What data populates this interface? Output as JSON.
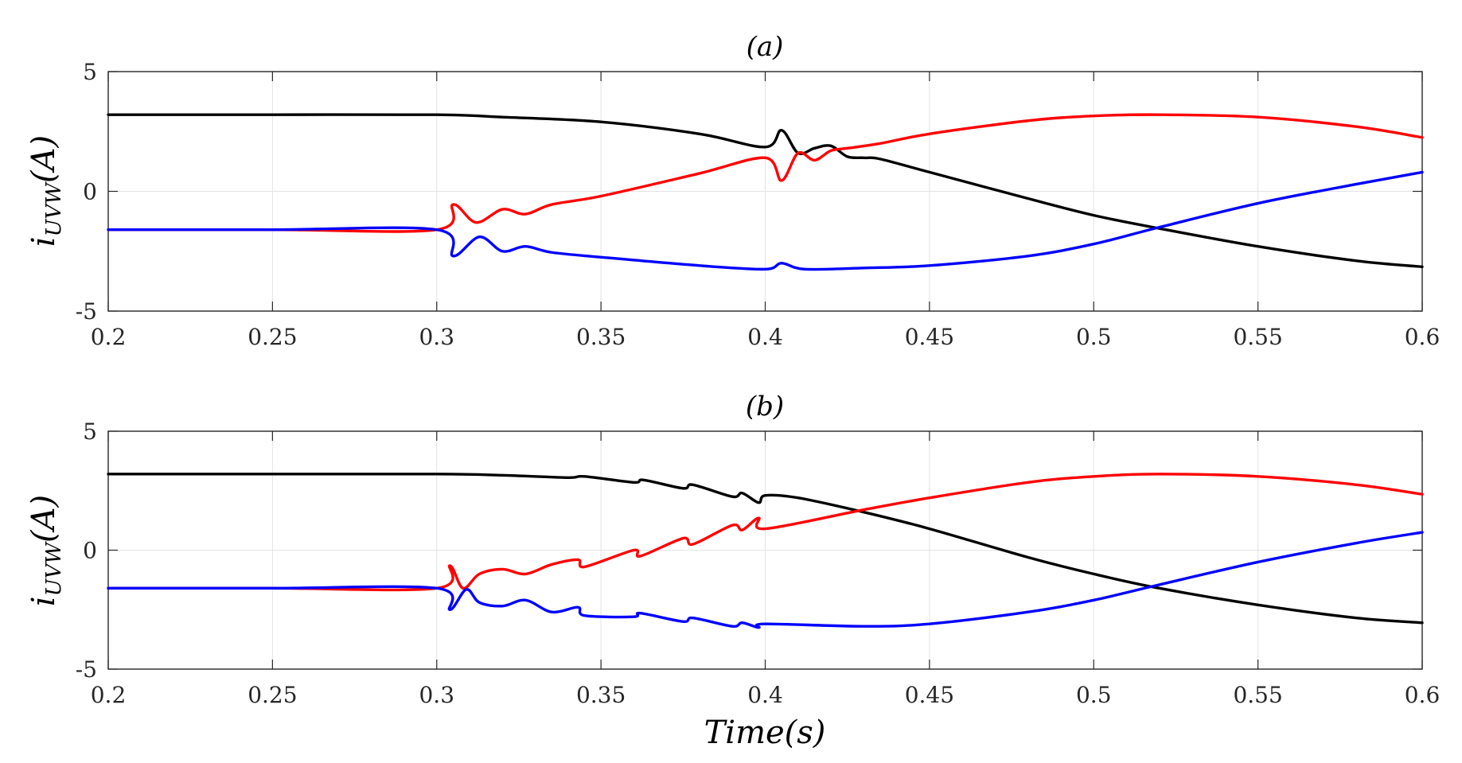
{
  "chart_data": [
    {
      "type": "line",
      "panel": "a",
      "title": "(a)",
      "xlabel": "",
      "ylabel": "i_UVW(A)",
      "xlim": [
        0.2,
        0.6
      ],
      "ylim": [
        -5,
        5
      ],
      "xticks": [
        0.2,
        0.25,
        0.3,
        0.35,
        0.4,
        0.45,
        0.5,
        0.55,
        0.6
      ],
      "xtick_labels": [
        "0.2",
        "0.25",
        "0.3",
        "0.35",
        "0.4",
        "0.45",
        "0.5",
        "0.55",
        "0.6"
      ],
      "yticks": [
        5,
        0,
        -5
      ],
      "ytick_labels": [
        "5",
        "0",
        "-5"
      ],
      "grid": true,
      "series": [
        {
          "name": "black",
          "color": "#000000",
          "x": [
            0.2,
            0.25,
            0.3,
            0.32,
            0.35,
            0.38,
            0.4,
            0.405,
            0.41,
            0.415,
            0.42,
            0.425,
            0.43,
            0.435,
            0.45,
            0.48,
            0.5,
            0.52,
            0.55,
            0.58,
            0.6
          ],
          "y": [
            3.2,
            3.2,
            3.2,
            3.1,
            2.9,
            2.4,
            1.85,
            2.55,
            1.6,
            1.8,
            1.9,
            1.45,
            1.4,
            1.35,
            0.8,
            -0.3,
            -1.0,
            -1.55,
            -2.3,
            -2.9,
            -3.15
          ]
        },
        {
          "name": "red",
          "color": "#ff0000",
          "x": [
            0.2,
            0.25,
            0.3,
            0.305,
            0.312,
            0.32,
            0.327,
            0.335,
            0.35,
            0.38,
            0.4,
            0.405,
            0.41,
            0.415,
            0.42,
            0.425,
            0.435,
            0.45,
            0.48,
            0.5,
            0.52,
            0.55,
            0.58,
            0.6
          ],
          "y": [
            -1.6,
            -1.6,
            -1.6,
            -0.55,
            -1.3,
            -0.75,
            -0.95,
            -0.55,
            -0.2,
            0.75,
            1.4,
            0.45,
            1.6,
            1.3,
            1.7,
            1.8,
            2.0,
            2.4,
            2.95,
            3.15,
            3.2,
            3.1,
            2.7,
            2.25
          ]
        },
        {
          "name": "blue",
          "color": "#0000ff",
          "x": [
            0.2,
            0.25,
            0.3,
            0.305,
            0.313,
            0.32,
            0.327,
            0.335,
            0.35,
            0.38,
            0.4,
            0.405,
            0.412,
            0.43,
            0.45,
            0.48,
            0.5,
            0.52,
            0.55,
            0.58,
            0.6
          ],
          "y": [
            -1.6,
            -1.6,
            -1.6,
            -2.7,
            -1.9,
            -2.5,
            -2.3,
            -2.55,
            -2.75,
            -3.1,
            -3.25,
            -3.0,
            -3.25,
            -3.2,
            -3.1,
            -2.7,
            -2.2,
            -1.5,
            -0.5,
            0.3,
            0.8
          ]
        }
      ]
    },
    {
      "type": "line",
      "panel": "b",
      "title": "(b)",
      "xlabel": "Time(s)",
      "ylabel": "i_UVW(A)",
      "xlim": [
        0.2,
        0.6
      ],
      "ylim": [
        -5,
        5
      ],
      "xticks": [
        0.2,
        0.25,
        0.3,
        0.35,
        0.4,
        0.45,
        0.5,
        0.55,
        0.6
      ],
      "xtick_labels": [
        "0.2",
        "0.25",
        "0.3",
        "0.35",
        "0.4",
        "0.45",
        "0.5",
        "0.55",
        "0.6"
      ],
      "yticks": [
        5,
        0,
        -5
      ],
      "ytick_labels": [
        "5",
        "0",
        "-5"
      ],
      "grid": true,
      "series": [
        {
          "name": "black",
          "color": "#000000",
          "x": [
            0.2,
            0.25,
            0.3,
            0.32,
            0.34,
            0.345,
            0.36,
            0.363,
            0.375,
            0.378,
            0.39,
            0.393,
            0.398,
            0.4,
            0.41,
            0.43,
            0.45,
            0.48,
            0.5,
            0.52,
            0.55,
            0.58,
            0.6
          ],
          "y": [
            3.2,
            3.2,
            3.2,
            3.15,
            3.05,
            3.1,
            2.85,
            2.95,
            2.6,
            2.75,
            2.25,
            2.4,
            2.0,
            2.3,
            2.2,
            1.6,
            0.9,
            -0.3,
            -1.0,
            -1.6,
            -2.3,
            -2.85,
            -3.05
          ]
        },
        {
          "name": "red",
          "color": "#ff0000",
          "x": [
            0.2,
            0.25,
            0.3,
            0.304,
            0.308,
            0.313,
            0.32,
            0.327,
            0.335,
            0.343,
            0.345,
            0.36,
            0.362,
            0.375,
            0.378,
            0.39,
            0.393,
            0.398,
            0.4,
            0.43,
            0.45,
            0.48,
            0.5,
            0.52,
            0.55,
            0.58,
            0.6
          ],
          "y": [
            -1.6,
            -1.6,
            -1.6,
            -0.65,
            -1.6,
            -1.0,
            -0.8,
            -1.0,
            -0.6,
            -0.4,
            -0.7,
            0.0,
            -0.25,
            0.5,
            0.25,
            1.05,
            0.85,
            1.35,
            0.9,
            1.7,
            2.2,
            2.85,
            3.1,
            3.2,
            3.1,
            2.75,
            2.35
          ]
        },
        {
          "name": "blue",
          "color": "#0000ff",
          "x": [
            0.2,
            0.25,
            0.3,
            0.304,
            0.309,
            0.313,
            0.32,
            0.327,
            0.335,
            0.343,
            0.345,
            0.36,
            0.362,
            0.375,
            0.378,
            0.39,
            0.393,
            0.398,
            0.4,
            0.43,
            0.45,
            0.48,
            0.5,
            0.52,
            0.55,
            0.58,
            0.6
          ],
          "y": [
            -1.6,
            -1.6,
            -1.6,
            -2.5,
            -1.65,
            -2.2,
            -2.35,
            -2.1,
            -2.6,
            -2.4,
            -2.75,
            -2.8,
            -2.65,
            -3.0,
            -2.85,
            -3.2,
            -3.05,
            -3.25,
            -3.1,
            -3.2,
            -3.1,
            -2.6,
            -2.1,
            -1.45,
            -0.5,
            0.3,
            0.75
          ]
        }
      ]
    }
  ]
}
